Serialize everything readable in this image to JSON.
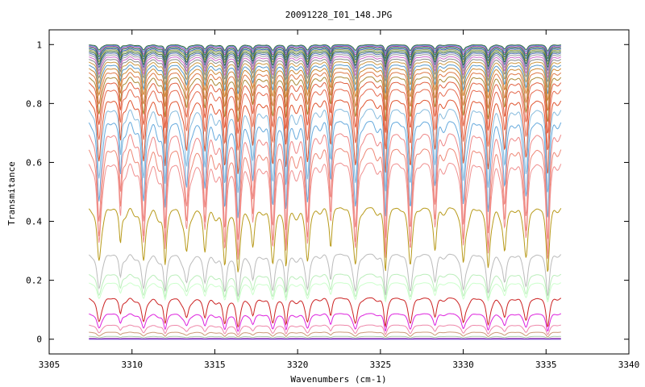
{
  "chart_data": {
    "type": "line",
    "title": "20091228_I01_148.JPG",
    "xlabel": "Wavenumbers (cm-1)",
    "ylabel": "Transmitance",
    "xlim": [
      3305,
      3340
    ],
    "ylim": [
      -0.05,
      1.05
    ],
    "xticks": [
      3305,
      3310,
      3315,
      3320,
      3325,
      3330,
      3335,
      3340
    ],
    "yticks": [
      0,
      0.2,
      0.4,
      0.6,
      0.8,
      1
    ],
    "ytick_labels": [
      "0",
      "0.2",
      "0.4",
      "0.6",
      "0.8",
      "1"
    ],
    "x_range": [
      3307.4,
      3335.9
    ],
    "grid": false,
    "legend": "none",
    "line_centers": [
      3308.0,
      3309.3,
      3310.7,
      3312.0,
      3313.3,
      3314.4,
      3315.6,
      3316.4,
      3317.3,
      3318.5,
      3319.3,
      3320.6,
      3322.0,
      3323.5,
      3325.3,
      3326.8,
      3328.3,
      3330.0,
      3331.5,
      3332.5,
      3333.8,
      3335.1
    ],
    "series": [
      {
        "baseline": 1.0,
        "depth": 0.02,
        "color": "#3a6b3a"
      },
      {
        "baseline": 0.998,
        "depth": 0.025,
        "color": "#5588cc"
      },
      {
        "baseline": 0.995,
        "depth": 0.03,
        "color": "#aa44aa"
      },
      {
        "baseline": 0.992,
        "depth": 0.035,
        "color": "#2f7f4f"
      },
      {
        "baseline": 0.988,
        "depth": 0.04,
        "color": "#3355aa"
      },
      {
        "baseline": 0.984,
        "depth": 0.045,
        "color": "#8a9a3a"
      },
      {
        "baseline": 0.979,
        "depth": 0.05,
        "color": "#336633"
      },
      {
        "baseline": 0.974,
        "depth": 0.055,
        "color": "#4466aa"
      },
      {
        "baseline": 0.968,
        "depth": 0.06,
        "color": "#999999"
      },
      {
        "baseline": 0.961,
        "depth": 0.065,
        "color": "#cc66cc"
      },
      {
        "baseline": 0.953,
        "depth": 0.07,
        "color": "#888888"
      },
      {
        "baseline": 0.944,
        "depth": 0.08,
        "color": "#cc9944"
      },
      {
        "baseline": 0.934,
        "depth": 0.09,
        "color": "#5599cc"
      },
      {
        "baseline": 0.923,
        "depth": 0.1,
        "color": "#cc8833"
      },
      {
        "baseline": 0.91,
        "depth": 0.12,
        "color": "#dd7744"
      },
      {
        "baseline": 0.895,
        "depth": 0.14,
        "color": "#aa8833"
      },
      {
        "baseline": 0.878,
        "depth": 0.16,
        "color": "#e06040"
      },
      {
        "baseline": 0.855,
        "depth": 0.19,
        "color": "#e56a4e"
      },
      {
        "baseline": 0.82,
        "depth": 0.23,
        "color": "#e05530"
      },
      {
        "baseline": 0.79,
        "depth": 0.26,
        "color": "#88bbdd"
      },
      {
        "baseline": 0.75,
        "depth": 0.3,
        "color": "#66aadd"
      },
      {
        "baseline": 0.71,
        "depth": 0.33,
        "color": "#ee8888"
      },
      {
        "baseline": 0.66,
        "depth": 0.33,
        "color": "#ee8877"
      },
      {
        "baseline": 0.61,
        "depth": 0.3,
        "color": "#f09090"
      },
      {
        "baseline": 0.455,
        "depth": 0.2,
        "color": "#b89a1a"
      },
      {
        "baseline": 0.295,
        "depth": 0.13,
        "color": "#bbbbbb"
      },
      {
        "baseline": 0.225,
        "depth": 0.08,
        "color": "#bbeebb"
      },
      {
        "baseline": 0.195,
        "depth": 0.06,
        "color": "#ccffcc"
      },
      {
        "baseline": 0.145,
        "depth": 0.09,
        "color": "#cc2222"
      },
      {
        "baseline": 0.09,
        "depth": 0.055,
        "color": "#dd22dd"
      },
      {
        "baseline": 0.05,
        "depth": 0.03,
        "color": "#ee88aa"
      },
      {
        "baseline": 0.025,
        "depth": 0.015,
        "color": "#cc9977"
      },
      {
        "baseline": 0.01,
        "depth": 0.006,
        "color": "#aaccaa"
      },
      {
        "baseline": 0.003,
        "depth": 0.002,
        "color": "#9933aa"
      },
      {
        "baseline": 0.0,
        "depth": 0.0,
        "color": "#6633cc"
      }
    ]
  }
}
